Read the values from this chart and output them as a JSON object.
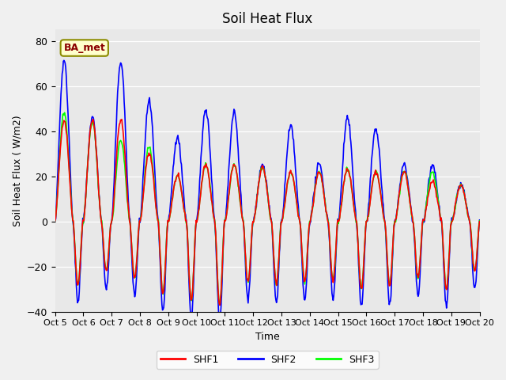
{
  "title": "Soil Heat Flux",
  "ylabel": "Soil Heat Flux ( W/m2)",
  "xlabel": "Time",
  "ylim": [
    -40,
    85
  ],
  "yticks": [
    -40,
    -20,
    0,
    20,
    40,
    60,
    80
  ],
  "annotation_text": "BA_met",
  "plot_bg_color": "#e8e8e8",
  "fig_bg_color": "#f0f0f0",
  "legend_labels": [
    "SHF1",
    "SHF2",
    "SHF3"
  ],
  "shf1_color": "red",
  "shf2_color": "blue",
  "shf3_color": "lime",
  "line_width": 1.2,
  "n_days": 15,
  "pts_per_day": 48,
  "shf1_amps": [
    45,
    45,
    45,
    30,
    20,
    25,
    25,
    24,
    22,
    22,
    23,
    22,
    22,
    18,
    16
  ],
  "shf2_amps": [
    71,
    46,
    71,
    53,
    37,
    50,
    48,
    25,
    42,
    25,
    46,
    41,
    25,
    25,
    16
  ],
  "shf3_amps": [
    48,
    44,
    36,
    33,
    20,
    25,
    25,
    24,
    22,
    22,
    23,
    22,
    22,
    22,
    16
  ],
  "night_depths": [
    -28,
    -22,
    -25,
    -32,
    -35,
    -37,
    -27,
    -28,
    -27,
    -26,
    -30,
    -28,
    -25,
    -30,
    -22
  ],
  "shf2_night_extra": -8
}
